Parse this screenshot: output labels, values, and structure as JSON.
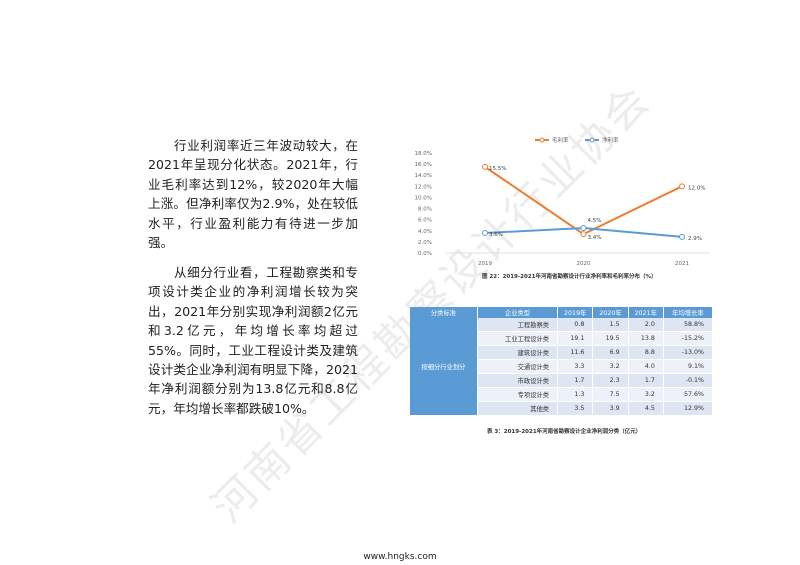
{
  "paragraphs": [
    "行业利润率近三年波动较大，在2021年呈现分化状态。2021年，行业毛利率达到12%，较2020年大幅上涨。但净利率仅为2.9%，处在较低水平，行业盈利能力有待进一步加强。",
    "从细分行业看，工程勘察类和专项设计类企业的净利润增长较为突出，2021年分别实现净利润额2亿元和3.2亿元，年均增长率均超过55%。同时，工业工程设计类及建筑设计类企业净利润有明显下降，2021年净利润额分别为13.8亿元和8.8亿元，年均增长率都跌破10%。"
  ],
  "chart_data": {
    "type": "line",
    "categories": [
      "2019",
      "2020",
      "2021"
    ],
    "series": [
      {
        "name": "毛利率",
        "values": [
          15.5,
          3.4,
          12.0
        ],
        "labels": [
          "15.5%",
          "3.4%",
          "12.0%"
        ],
        "color": "#ed7d31"
      },
      {
        "name": "净利率",
        "values": [
          3.6,
          4.5,
          2.9
        ],
        "labels": [
          "3.6%",
          "4.5%",
          "2.9%"
        ],
        "color": "#5b9bd5"
      }
    ],
    "ylim": [
      0,
      18
    ],
    "yticks": [
      "0.0%",
      "2.0%",
      "4.0%",
      "6.0%",
      "8.0%",
      "10.0%",
      "12.0%",
      "14.0%",
      "16.0%",
      "18.0%"
    ],
    "legend": "top",
    "grid": false
  },
  "chart_caption": "图 22：2019-2021年河南省勘察设计行业净利率和毛利率分布（%）",
  "table": {
    "headers": [
      "分类标准",
      "企业类型",
      "2019年",
      "2020年",
      "2021年",
      "年均增长率"
    ],
    "group": "按细分行业划分",
    "rows": [
      [
        "工程勘察类",
        "0.8",
        "1.5",
        "2.0",
        "58.8%"
      ],
      [
        "工业工程设计类",
        "19.1",
        "19.5",
        "13.8",
        "-15.2%"
      ],
      [
        "建筑设计类",
        "11.6",
        "6.9",
        "8.8",
        "-13.0%"
      ],
      [
        "交通设计类",
        "3.3",
        "3.2",
        "4.0",
        "9.1%"
      ],
      [
        "市政设计类",
        "1.7",
        "2.3",
        "1.7",
        "-0.1%"
      ],
      [
        "专项设计类",
        "1.3",
        "7.5",
        "3.2",
        "57.6%"
      ],
      [
        "其他类",
        "3.5",
        "3.9",
        "4.5",
        "12.9%"
      ]
    ]
  },
  "table_caption": "表 3：2019-2021年河南省勘察设计企业净利润分类（亿元）",
  "footer": "www.hngks.com",
  "watermark": "河南省工程勘察设计行业协会"
}
